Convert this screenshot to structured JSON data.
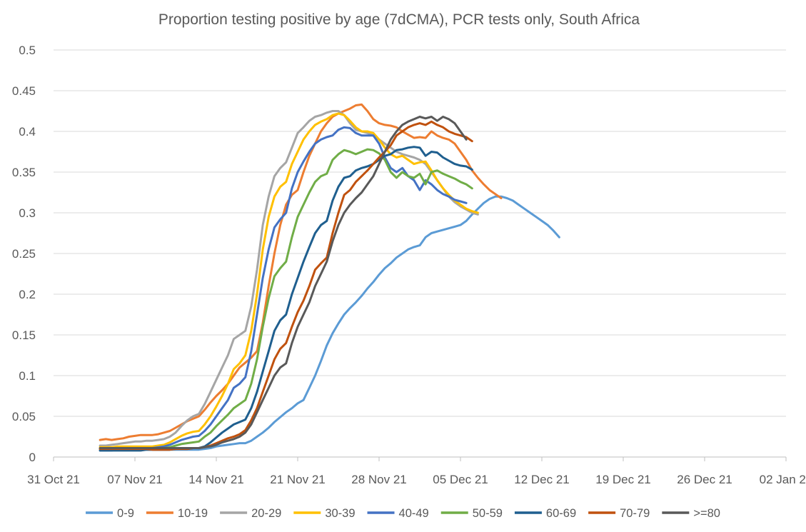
{
  "chart_data": {
    "type": "line",
    "title": "Proportion testing positive by age (7dCMA), PCR tests only, South Africa",
    "xlabel": "",
    "ylabel": "",
    "ylim": [
      0,
      0.5
    ],
    "yticks": [
      "0",
      "0.05",
      "0.1",
      "0.15",
      "0.2",
      "0.25",
      "0.3",
      "0.35",
      "0.4",
      "0.45",
      "0.5"
    ],
    "xlim_days": [
      0,
      63
    ],
    "xticks": [
      {
        "label": "31 Oct 21",
        "day": 0
      },
      {
        "label": "07 Nov 21",
        "day": 7
      },
      {
        "label": "14 Nov 21",
        "day": 14
      },
      {
        "label": "21 Nov 21",
        "day": 21
      },
      {
        "label": "28 Nov 21",
        "day": 28
      },
      {
        "label": "05 Dec 21",
        "day": 35
      },
      {
        "label": "12 Dec 21",
        "day": 42
      },
      {
        "label": "19 Dec 21",
        "day": 49
      },
      {
        "label": "26 Dec 21",
        "day": 56
      },
      {
        "label": "02 Jan 22",
        "day": 63
      }
    ],
    "x_start_day": 4,
    "x_step_days": 0.5,
    "legend_position": "bottom",
    "series": [
      {
        "name": "0-9",
        "color": "#5b9bd5",
        "values": [
          0.008,
          0.008,
          0.008,
          0.009,
          0.009,
          0.009,
          0.009,
          0.009,
          0.009,
          0.009,
          0.009,
          0.009,
          0.009,
          0.009,
          0.009,
          0.009,
          0.009,
          0.009,
          0.01,
          0.011,
          0.013,
          0.014,
          0.015,
          0.016,
          0.017,
          0.017,
          0.02,
          0.025,
          0.03,
          0.036,
          0.043,
          0.049,
          0.055,
          0.06,
          0.066,
          0.07,
          0.085,
          0.1,
          0.118,
          0.137,
          0.152,
          0.164,
          0.175,
          0.183,
          0.19,
          0.198,
          0.207,
          0.215,
          0.224,
          0.232,
          0.238,
          0.245,
          0.25,
          0.255,
          0.258,
          0.26,
          0.27,
          0.275,
          0.277,
          0.279,
          0.281,
          0.283,
          0.285,
          0.29,
          0.298,
          0.305,
          0.312,
          0.317,
          0.32,
          0.32,
          0.318,
          0.315,
          0.31,
          0.305,
          0.3,
          0.295,
          0.29,
          0.285,
          0.278,
          0.27
        ]
      },
      {
        "name": "10-19",
        "color": "#ed7d31",
        "values": [
          0.021,
          0.022,
          0.021,
          0.022,
          0.023,
          0.025,
          0.026,
          0.027,
          0.027,
          0.027,
          0.028,
          0.03,
          0.032,
          0.036,
          0.04,
          0.044,
          0.047,
          0.05,
          0.058,
          0.067,
          0.075,
          0.082,
          0.09,
          0.1,
          0.11,
          0.116,
          0.122,
          0.13,
          0.165,
          0.21,
          0.25,
          0.285,
          0.31,
          0.322,
          0.328,
          0.35,
          0.37,
          0.385,
          0.4,
          0.41,
          0.418,
          0.422,
          0.425,
          0.428,
          0.432,
          0.433,
          0.425,
          0.415,
          0.41,
          0.408,
          0.407,
          0.405,
          0.4,
          0.396,
          0.392,
          0.393,
          0.392,
          0.4,
          0.395,
          0.392,
          0.39,
          0.385,
          0.375,
          0.365,
          0.352,
          0.343,
          0.335,
          0.328,
          0.323,
          0.318
        ]
      },
      {
        "name": "20-29",
        "color": "#a5a5a5",
        "values": [
          0.014,
          0.014,
          0.015,
          0.016,
          0.017,
          0.018,
          0.019,
          0.019,
          0.02,
          0.02,
          0.021,
          0.022,
          0.025,
          0.03,
          0.038,
          0.045,
          0.05,
          0.053,
          0.065,
          0.08,
          0.095,
          0.11,
          0.125,
          0.145,
          0.15,
          0.155,
          0.185,
          0.23,
          0.285,
          0.32,
          0.345,
          0.355,
          0.362,
          0.38,
          0.398,
          0.405,
          0.413,
          0.418,
          0.42,
          0.423,
          0.425,
          0.425,
          0.42,
          0.41,
          0.402,
          0.4,
          0.398,
          0.395,
          0.39,
          0.385,
          0.38,
          0.375,
          0.372,
          0.37,
          0.368,
          0.365,
          0.36,
          0.35,
          0.34,
          0.33,
          0.32,
          0.313,
          0.308,
          0.304,
          0.3,
          0.298
        ]
      },
      {
        "name": "30-39",
        "color": "#ffc000",
        "values": [
          0.012,
          0.012,
          0.012,
          0.013,
          0.013,
          0.013,
          0.013,
          0.013,
          0.013,
          0.013,
          0.014,
          0.015,
          0.018,
          0.022,
          0.026,
          0.029,
          0.031,
          0.032,
          0.04,
          0.05,
          0.062,
          0.075,
          0.09,
          0.108,
          0.115,
          0.125,
          0.155,
          0.2,
          0.255,
          0.295,
          0.32,
          0.332,
          0.338,
          0.36,
          0.375,
          0.39,
          0.4,
          0.408,
          0.412,
          0.415,
          0.42,
          0.422,
          0.42,
          0.413,
          0.405,
          0.4,
          0.4,
          0.398,
          0.39,
          0.38,
          0.372,
          0.368,
          0.37,
          0.365,
          0.36,
          0.362,
          0.363,
          0.352,
          0.34,
          0.33,
          0.322,
          0.315,
          0.31,
          0.305,
          0.302,
          0.3
        ]
      },
      {
        "name": "40-49",
        "color": "#4472c4",
        "values": [
          0.01,
          0.01,
          0.01,
          0.01,
          0.011,
          0.011,
          0.011,
          0.011,
          0.011,
          0.011,
          0.012,
          0.013,
          0.015,
          0.018,
          0.021,
          0.023,
          0.025,
          0.026,
          0.032,
          0.04,
          0.05,
          0.06,
          0.07,
          0.085,
          0.09,
          0.098,
          0.13,
          0.175,
          0.22,
          0.255,
          0.282,
          0.292,
          0.3,
          0.33,
          0.35,
          0.363,
          0.375,
          0.385,
          0.39,
          0.393,
          0.395,
          0.402,
          0.405,
          0.404,
          0.398,
          0.395,
          0.395,
          0.395,
          0.385,
          0.368,
          0.355,
          0.35,
          0.355,
          0.345,
          0.34,
          0.328,
          0.34,
          0.335,
          0.328,
          0.323,
          0.32,
          0.316,
          0.314,
          0.312
        ]
      },
      {
        "name": "50-59",
        "color": "#70ad47",
        "values": [
          0.01,
          0.01,
          0.01,
          0.01,
          0.01,
          0.01,
          0.01,
          0.01,
          0.01,
          0.01,
          0.01,
          0.011,
          0.012,
          0.014,
          0.016,
          0.017,
          0.018,
          0.019,
          0.025,
          0.03,
          0.038,
          0.045,
          0.052,
          0.06,
          0.065,
          0.07,
          0.09,
          0.12,
          0.16,
          0.195,
          0.222,
          0.232,
          0.24,
          0.27,
          0.295,
          0.31,
          0.325,
          0.338,
          0.345,
          0.348,
          0.365,
          0.372,
          0.377,
          0.375,
          0.372,
          0.375,
          0.378,
          0.377,
          0.373,
          0.365,
          0.35,
          0.343,
          0.35,
          0.345,
          0.343,
          0.348,
          0.335,
          0.35,
          0.352,
          0.348,
          0.345,
          0.342,
          0.338,
          0.335,
          0.33
        ]
      },
      {
        "name": "60-69",
        "color": "#1f5f8f",
        "values": [
          0.008,
          0.008,
          0.008,
          0.008,
          0.008,
          0.008,
          0.008,
          0.008,
          0.009,
          0.009,
          0.009,
          0.009,
          0.009,
          0.01,
          0.01,
          0.01,
          0.011,
          0.011,
          0.013,
          0.018,
          0.024,
          0.03,
          0.035,
          0.04,
          0.043,
          0.046,
          0.06,
          0.08,
          0.105,
          0.13,
          0.155,
          0.168,
          0.175,
          0.2,
          0.22,
          0.24,
          0.258,
          0.275,
          0.285,
          0.29,
          0.315,
          0.332,
          0.343,
          0.345,
          0.352,
          0.355,
          0.357,
          0.36,
          0.365,
          0.37,
          0.372,
          0.377,
          0.378,
          0.38,
          0.381,
          0.38,
          0.37,
          0.375,
          0.374,
          0.368,
          0.364,
          0.36,
          0.358,
          0.357,
          0.353
        ]
      },
      {
        "name": "70-79",
        "color": "#c0510e",
        "values": [
          0.01,
          0.01,
          0.01,
          0.01,
          0.01,
          0.01,
          0.01,
          0.01,
          0.01,
          0.009,
          0.009,
          0.009,
          0.009,
          0.01,
          0.01,
          0.01,
          0.011,
          0.011,
          0.012,
          0.014,
          0.017,
          0.02,
          0.023,
          0.025,
          0.028,
          0.033,
          0.045,
          0.06,
          0.08,
          0.1,
          0.12,
          0.133,
          0.14,
          0.16,
          0.178,
          0.192,
          0.21,
          0.23,
          0.238,
          0.245,
          0.275,
          0.3,
          0.322,
          0.328,
          0.338,
          0.345,
          0.352,
          0.36,
          0.368,
          0.375,
          0.383,
          0.395,
          0.4,
          0.405,
          0.408,
          0.41,
          0.408,
          0.412,
          0.408,
          0.405,
          0.4,
          0.397,
          0.395,
          0.393,
          0.388
        ]
      },
      {
        "name": ">=80",
        "color": "#595959",
        "values": [
          0.011,
          0.011,
          0.011,
          0.011,
          0.011,
          0.011,
          0.011,
          0.011,
          0.011,
          0.011,
          0.011,
          0.011,
          0.011,
          0.011,
          0.011,
          0.011,
          0.011,
          0.011,
          0.012,
          0.013,
          0.015,
          0.018,
          0.02,
          0.022,
          0.025,
          0.03,
          0.04,
          0.055,
          0.07,
          0.085,
          0.1,
          0.11,
          0.115,
          0.14,
          0.16,
          0.175,
          0.19,
          0.21,
          0.225,
          0.24,
          0.265,
          0.285,
          0.3,
          0.31,
          0.318,
          0.325,
          0.335,
          0.345,
          0.36,
          0.375,
          0.39,
          0.4,
          0.408,
          0.412,
          0.415,
          0.418,
          0.416,
          0.418,
          0.413,
          0.418,
          0.415,
          0.41,
          0.4,
          0.39
        ]
      }
    ]
  }
}
